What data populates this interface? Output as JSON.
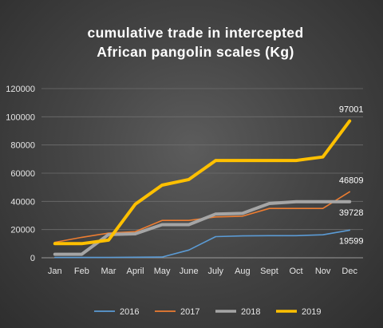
{
  "chart_data": {
    "type": "line",
    "title_lines": [
      "cumulative  trade  in intercepted",
      "African  pangolin  scales  (Kg)"
    ],
    "categories": [
      "Jan",
      "Feb",
      "Mar",
      "April",
      "May",
      "June",
      "July",
      "Aug",
      "Sept",
      "Oct",
      "Nov",
      "Dec"
    ],
    "ylim": [
      0,
      120000
    ],
    "yticks": [
      0,
      20000,
      40000,
      60000,
      80000,
      100000,
      120000
    ],
    "ytick_labels": [
      "0",
      "20000",
      "40000",
      "60000",
      "80000",
      "100000",
      "120000"
    ],
    "grid": true,
    "legend_position": "bottom",
    "series": [
      {
        "name": "2016",
        "color": "#5b9bd5",
        "stroke_width": 1.6,
        "values": [
          200,
          200,
          300,
          400,
          500,
          5500,
          15000,
          15500,
          15700,
          15700,
          16300,
          19599
        ]
      },
      {
        "name": "2017",
        "color": "#ed7d31",
        "stroke_width": 1.6,
        "values": [
          11000,
          14500,
          17500,
          18500,
          26500,
          26500,
          29000,
          29500,
          35000,
          35000,
          35000,
          46809
        ]
      },
      {
        "name": "2018",
        "color": "#a5a5a5",
        "stroke_width": 4,
        "values": [
          2500,
          2500,
          16500,
          17000,
          23500,
          23500,
          31000,
          31500,
          38500,
          39728,
          39728,
          39728
        ]
      },
      {
        "name": "2019",
        "color": "#ffc000",
        "stroke_width": 4,
        "values": [
          10000,
          10000,
          12500,
          38000,
          51500,
          55500,
          69000,
          69000,
          69000,
          69000,
          71500,
          97001
        ]
      }
    ],
    "data_labels": [
      {
        "series": "2019",
        "index": 11,
        "text": "97001",
        "placement": "above"
      },
      {
        "series": "2017",
        "index": 11,
        "text": "46809",
        "placement": "above"
      },
      {
        "series": "2018",
        "index": 11,
        "text": "39728",
        "placement": "below"
      },
      {
        "series": "2016",
        "index": 11,
        "text": "19599",
        "placement": "below"
      }
    ]
  }
}
